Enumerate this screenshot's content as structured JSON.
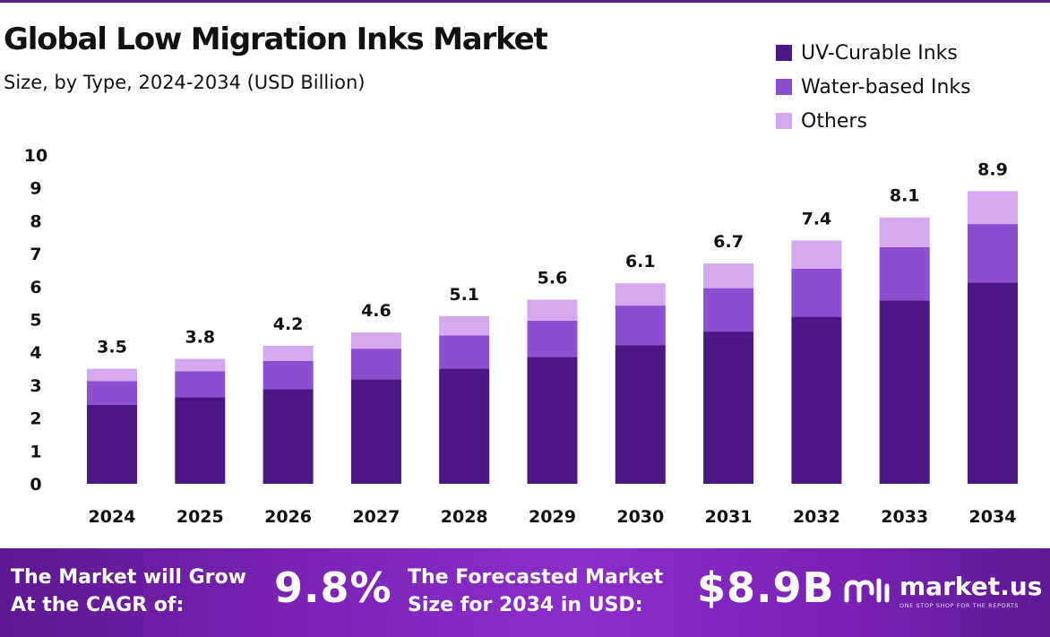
{
  "title": "Global Low Migration Inks Market",
  "subtitle": "Size, by Type, 2024-2034 (USD Billion)",
  "colors": {
    "uv": "#4b1686",
    "water": "#8b4fd0",
    "others": "#d4a9ef",
    "text": "#111111"
  },
  "chart_data": {
    "type": "bar",
    "stacked": true,
    "categories": [
      "2024",
      "2025",
      "2026",
      "2027",
      "2028",
      "2029",
      "2030",
      "2031",
      "2032",
      "2033",
      "2034"
    ],
    "series": [
      {
        "name": "UV-Curable Inks",
        "color": "#4b1686",
        "values": [
          2.4,
          2.63,
          2.88,
          3.18,
          3.5,
          3.86,
          4.22,
          4.63,
          5.08,
          5.58,
          6.12
        ]
      },
      {
        "name": "Water-based Inks",
        "color": "#8b4fd0",
        "values": [
          0.72,
          0.79,
          0.86,
          0.93,
          1.01,
          1.1,
          1.2,
          1.32,
          1.46,
          1.62,
          1.78
        ]
      },
      {
        "name": "Others",
        "color": "#d4a9ef",
        "values": [
          0.38,
          0.38,
          0.46,
          0.49,
          0.59,
          0.64,
          0.68,
          0.75,
          0.86,
          0.9,
          1.0
        ]
      }
    ],
    "totals": [
      "3.5",
      "3.8",
      "4.2",
      "4.6",
      "5.1",
      "5.6",
      "6.1",
      "6.7",
      "7.4",
      "8.1",
      "8.9"
    ],
    "yticks": [
      0,
      1,
      2,
      3,
      4,
      5,
      6,
      7,
      8,
      9,
      10
    ],
    "ylim": [
      0,
      10
    ],
    "grid": false,
    "legend_position": "top-right"
  },
  "footer": {
    "cagr_line1": "The Market will Grow",
    "cagr_line2": "At the CAGR of:",
    "cagr_value": "9.8%",
    "forecast_line1": "The Forecasted Market",
    "forecast_line2": "Size for 2034 in USD:",
    "forecast_value": "$8.9B",
    "brand_name": "market.us",
    "brand_tagline": "ONE STOP SHOP FOR THE REPORTS"
  }
}
